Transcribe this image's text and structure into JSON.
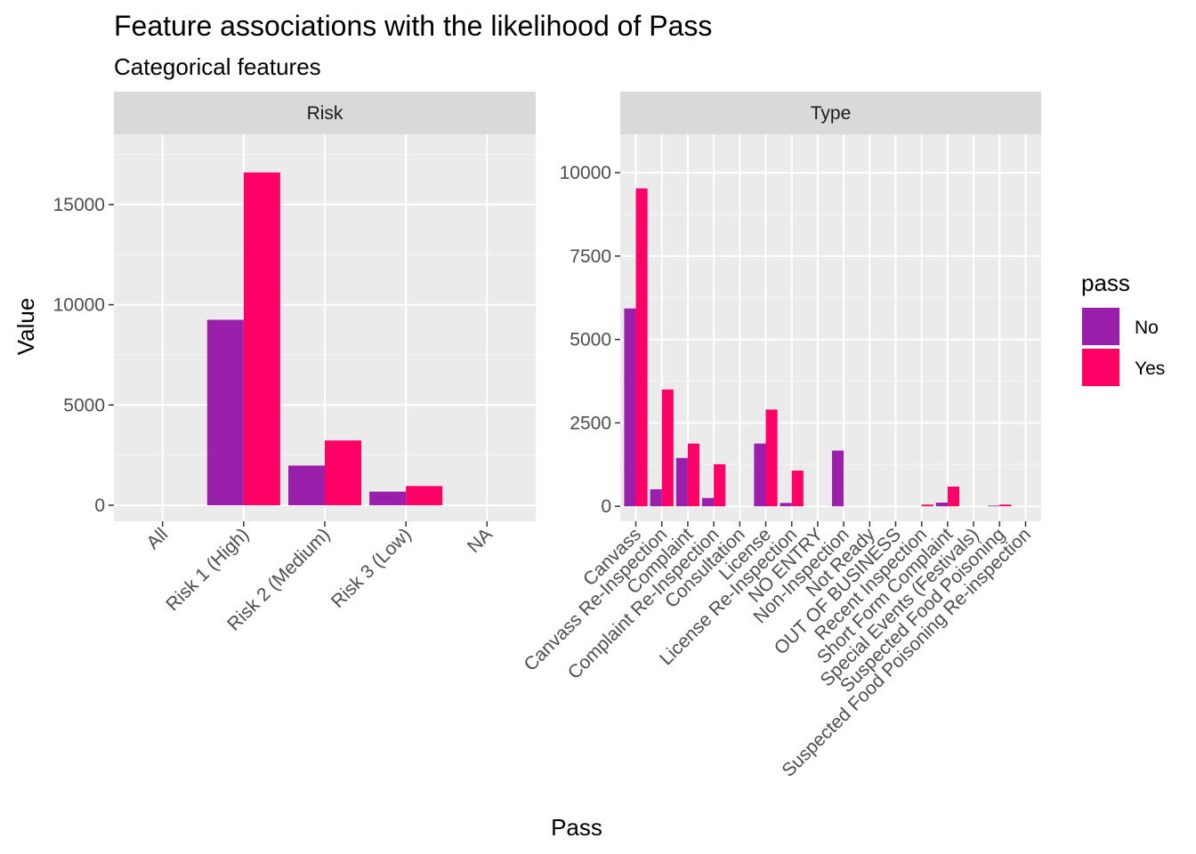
{
  "chart_data": {
    "type": "bar",
    "title": "Feature associations with the likelihood of Pass",
    "subtitle": "Categorical features",
    "xlabel": "Pass",
    "ylabel": "Value",
    "legend": {
      "title": "pass",
      "position": "right",
      "entries": [
        {
          "name": "No",
          "color": "#9A1FAB"
        },
        {
          "name": "Yes",
          "color": "#FF0066"
        }
      ]
    },
    "grid": true,
    "panels": [
      {
        "strip": "Risk",
        "categories": [
          "All",
          "Risk 1 (High)",
          "Risk 2 (Medium)",
          "Risk 3 (Low)",
          "NA"
        ],
        "ylim": [
          -800,
          18500
        ],
        "yticks": [
          0,
          5000,
          10000,
          15000
        ],
        "series": [
          {
            "name": "No",
            "values": [
              0,
              9250,
              1980,
              680,
              0
            ]
          },
          {
            "name": "Yes",
            "values": [
              0,
              16600,
              3230,
              960,
              0
            ]
          }
        ]
      },
      {
        "strip": "Type",
        "categories": [
          "Canvass",
          "Canvass Re-Inspection",
          "Complaint",
          "Complaint Re-Inspection",
          "Consultation",
          "License",
          "License Re-Inspection",
          "NO ENTRY",
          "Non-Inspection",
          "Not Ready",
          "OUT OF BUSINESS",
          "Recent Inspection",
          "Short Form Complaint",
          "Special Events (Festivals)",
          "Suspected Food Poisoning",
          "Suspected Food Poisoning Re-inspection"
        ],
        "ylim": [
          -450,
          11150
        ],
        "yticks": [
          0,
          2500,
          5000,
          7500,
          10000
        ],
        "series": [
          {
            "name": "No",
            "values": [
              5930,
              510,
              1450,
              250,
              0,
              1880,
              100,
              0,
              1670,
              0,
              0,
              0,
              110,
              0,
              20,
              0
            ]
          },
          {
            "name": "Yes",
            "values": [
              9530,
              3500,
              1880,
              1260,
              0,
              2900,
              1070,
              0,
              0,
              0,
              0,
              50,
              590,
              0,
              50,
              0
            ]
          }
        ]
      }
    ]
  }
}
